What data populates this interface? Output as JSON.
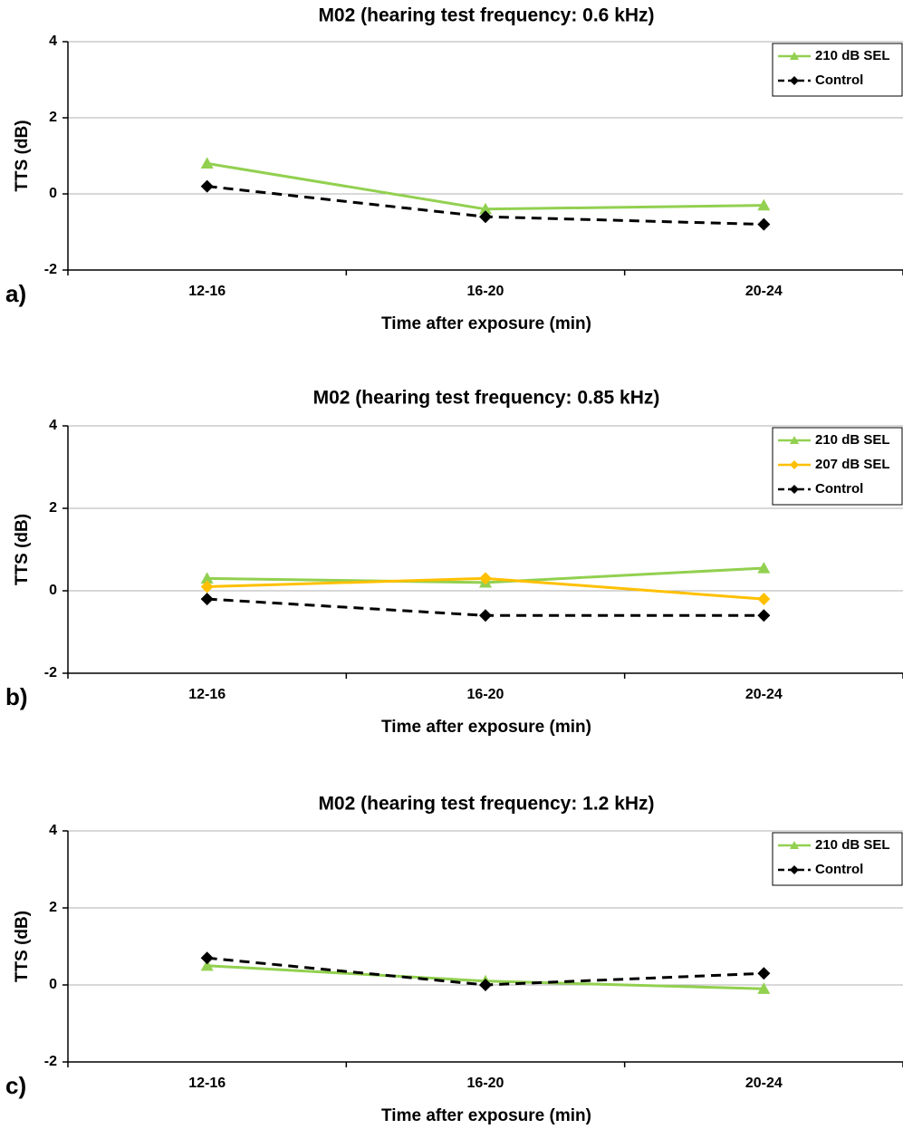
{
  "chart_data": [
    {
      "type": "line",
      "title": "M02 (hearing test frequency: 0.6 kHz)",
      "panel_label": "a)",
      "xlabel": "Time after exposure (min)",
      "ylabel": "TTS (dB)",
      "categories": [
        "12-16",
        "16-20",
        "20-24"
      ],
      "series": [
        {
          "name": "210 dB SEL",
          "color": "#92d050",
          "style": "solid",
          "marker": "triangle",
          "values": [
            0.8,
            -0.4,
            -0.3
          ]
        },
        {
          "name": "Control",
          "color": "#000000",
          "style": "dashed",
          "marker": "diamond",
          "values": [
            0.2,
            -0.6,
            -0.8
          ]
        }
      ],
      "ylim": [
        -2,
        4
      ],
      "yticks": [
        -2,
        0,
        2,
        4
      ],
      "grid": true,
      "legend": "upper right"
    },
    {
      "type": "line",
      "title": "M02 (hearing test frequency: 0.85 kHz)",
      "panel_label": "b)",
      "xlabel": "Time after exposure (min)",
      "ylabel": "TTS (dB)",
      "categories": [
        "12-16",
        "16-20",
        "20-24"
      ],
      "series": [
        {
          "name": "210 dB SEL",
          "color": "#92d050",
          "style": "solid",
          "marker": "triangle",
          "values": [
            0.3,
            0.2,
            0.55
          ]
        },
        {
          "name": "207 dB SEL",
          "color": "#ffc000",
          "style": "solid",
          "marker": "diamond",
          "values": [
            0.1,
            0.3,
            -0.2
          ]
        },
        {
          "name": "Control",
          "color": "#000000",
          "style": "dashed",
          "marker": "diamond",
          "values": [
            -0.2,
            -0.6,
            -0.6
          ]
        }
      ],
      "ylim": [
        -2,
        4
      ],
      "yticks": [
        -2,
        0,
        2,
        4
      ],
      "grid": true,
      "legend": "upper right"
    },
    {
      "type": "line",
      "title": "M02 (hearing test frequency: 1.2 kHz)",
      "panel_label": "c)",
      "xlabel": "Time after exposure (min)",
      "ylabel": "TTS (dB)",
      "categories": [
        "12-16",
        "16-20",
        "20-24"
      ],
      "series": [
        {
          "name": "210 dB SEL",
          "color": "#92d050",
          "style": "solid",
          "marker": "triangle",
          "values": [
            0.5,
            0.1,
            -0.1
          ]
        },
        {
          "name": "Control",
          "color": "#000000",
          "style": "dashed",
          "marker": "diamond",
          "values": [
            0.7,
            0.0,
            0.3
          ]
        }
      ],
      "ylim": [
        -2,
        4
      ],
      "yticks": [
        -2,
        0,
        2,
        4
      ],
      "grid": true,
      "legend": "upper right"
    }
  ]
}
